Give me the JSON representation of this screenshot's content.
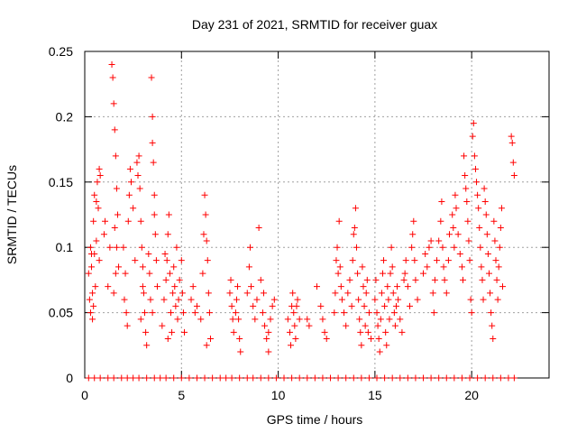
{
  "chart_data": {
    "type": "scatter",
    "title": "Day 231 of 2021, SRMTID for receiver guax",
    "xlabel": "GPS time / hours",
    "ylabel": "SRMTID / TECUs",
    "xlim": [
      0,
      24
    ],
    "ylim": [
      0,
      0.25
    ],
    "xticks": [
      0,
      5,
      10,
      15,
      20
    ],
    "yticks": [
      0,
      0.05,
      0.1,
      0.15,
      0.2,
      0.25
    ],
    "ytick_labels": [
      "0",
      "0.05",
      "0.1",
      "0.15",
      "0.2",
      "0.25"
    ],
    "grid": true,
    "marker": "+",
    "series_color": "#ff0000",
    "series": [
      {
        "name": "SRMTID",
        "points": [
          [
            0.2,
            0.08
          ],
          [
            0.25,
            0.06
          ],
          [
            0.3,
            0.05
          ],
          [
            0.3,
            0.1
          ],
          [
            0.35,
            0.085
          ],
          [
            0.4,
            0.065
          ],
          [
            0.45,
            0.12
          ],
          [
            0.5,
            0.14
          ],
          [
            0.5,
            0.095
          ],
          [
            0.55,
            0.07
          ],
          [
            0.6,
            0.105
          ],
          [
            0.65,
            0.15
          ],
          [
            0.7,
            0.13
          ],
          [
            0.4,
            0.045
          ],
          [
            0.45,
            0.055
          ],
          [
            0.75,
            0.16
          ],
          [
            0.8,
            0.155
          ],
          [
            0.75,
            0.09
          ],
          [
            0.35,
            0.095
          ],
          [
            0.6,
            0.135
          ],
          [
            1.0,
            0.11
          ],
          [
            1.05,
            0.12
          ],
          [
            1.2,
            0.07
          ],
          [
            1.3,
            0.1
          ],
          [
            1.4,
            0.24
          ],
          [
            1.45,
            0.23
          ],
          [
            1.5,
            0.21
          ],
          [
            1.55,
            0.19
          ],
          [
            1.6,
            0.17
          ],
          [
            1.65,
            0.145
          ],
          [
            1.7,
            0.125
          ],
          [
            1.75,
            0.085
          ],
          [
            1.5,
            0.065
          ],
          [
            1.6,
            0.08
          ],
          [
            1.55,
            0.115
          ],
          [
            1.65,
            0.1
          ],
          [
            2.0,
            0.1
          ],
          [
            2.05,
            0.06
          ],
          [
            2.1,
            0.08
          ],
          [
            2.15,
            0.05
          ],
          [
            2.2,
            0.04
          ],
          [
            2.25,
            0.12
          ],
          [
            2.3,
            0.14
          ],
          [
            2.35,
            0.16
          ],
          [
            2.4,
            0.15
          ],
          [
            2.5,
            0.13
          ],
          [
            2.6,
            0.09
          ],
          [
            2.7,
            0.165
          ],
          [
            2.75,
            0.155
          ],
          [
            2.8,
            0.17
          ],
          [
            2.85,
            0.145
          ],
          [
            2.9,
            0.12
          ],
          [
            2.95,
            0.1
          ],
          [
            3.0,
            0.085
          ],
          [
            3.05,
            0.065
          ],
          [
            3.1,
            0.05
          ],
          [
            3.15,
            0.035
          ],
          [
            3.2,
            0.025
          ],
          [
            3.0,
            0.07
          ],
          [
            2.9,
            0.045
          ],
          [
            3.3,
            0.095
          ],
          [
            3.35,
            0.08
          ],
          [
            3.4,
            0.06
          ],
          [
            3.45,
            0.23
          ],
          [
            3.5,
            0.2
          ],
          [
            3.5,
            0.18
          ],
          [
            3.55,
            0.165
          ],
          [
            3.6,
            0.14
          ],
          [
            3.6,
            0.125
          ],
          [
            3.65,
            0.11
          ],
          [
            3.7,
            0.09
          ],
          [
            3.75,
            0.07
          ],
          [
            3.5,
            0.05
          ],
          [
            4.0,
            0.04
          ],
          [
            4.1,
            0.06
          ],
          [
            4.2,
            0.075
          ],
          [
            4.25,
            0.09
          ],
          [
            4.3,
            0.11
          ],
          [
            4.35,
            0.125
          ],
          [
            4.4,
            0.08
          ],
          [
            4.45,
            0.05
          ],
          [
            4.5,
            0.035
          ],
          [
            4.55,
            0.065
          ],
          [
            4.6,
            0.085
          ],
          [
            4.65,
            0.07
          ],
          [
            4.7,
            0.055
          ],
          [
            4.75,
            0.1
          ],
          [
            4.8,
            0.045
          ],
          [
            4.85,
            0.06
          ],
          [
            4.9,
            0.075
          ],
          [
            5.0,
            0.09
          ],
          [
            5.05,
            0.065
          ],
          [
            5.1,
            0.05
          ],
          [
            5.15,
            0.035
          ],
          [
            4.3,
            0.03
          ],
          [
            4.15,
            0.095
          ],
          [
            5.5,
            0.06
          ],
          [
            5.6,
            0.07
          ],
          [
            5.7,
            0.05
          ],
          [
            5.8,
            0.055
          ],
          [
            6.0,
            0.045
          ],
          [
            6.1,
            0.08
          ],
          [
            6.2,
            0.14
          ],
          [
            6.25,
            0.125
          ],
          [
            6.3,
            0.105
          ],
          [
            6.35,
            0.09
          ],
          [
            6.4,
            0.065
          ],
          [
            6.45,
            0.05
          ],
          [
            6.5,
            0.03
          ],
          [
            6.3,
            0.025
          ],
          [
            6.15,
            0.11
          ],
          [
            7.5,
            0.065
          ],
          [
            7.6,
            0.055
          ],
          [
            7.65,
            0.045
          ],
          [
            7.7,
            0.035
          ],
          [
            7.8,
            0.05
          ],
          [
            7.85,
            0.06
          ],
          [
            7.9,
            0.07
          ],
          [
            7.95,
            0.045
          ],
          [
            8.0,
            0.03
          ],
          [
            8.05,
            0.02
          ],
          [
            7.55,
            0.075
          ],
          [
            8.4,
            0.065
          ],
          [
            8.5,
            0.085
          ],
          [
            8.55,
            0.1
          ],
          [
            8.6,
            0.07
          ],
          [
            8.7,
            0.055
          ],
          [
            8.8,
            0.045
          ],
          [
            8.9,
            0.06
          ],
          [
            9.0,
            0.115
          ],
          [
            9.1,
            0.075
          ],
          [
            9.2,
            0.05
          ],
          [
            9.3,
            0.04
          ],
          [
            9.4,
            0.03
          ],
          [
            9.5,
            0.02
          ],
          [
            9.6,
            0.045
          ],
          [
            9.7,
            0.055
          ],
          [
            9.8,
            0.06
          ],
          [
            9.5,
            0.035
          ],
          [
            9.25,
            0.065
          ],
          [
            10.5,
            0.045
          ],
          [
            10.6,
            0.035
          ],
          [
            10.7,
            0.055
          ],
          [
            10.75,
            0.065
          ],
          [
            10.8,
            0.05
          ],
          [
            10.85,
            0.04
          ],
          [
            10.9,
            0.03
          ],
          [
            10.95,
            0.055
          ],
          [
            11.0,
            0.06
          ],
          [
            11.1,
            0.045
          ],
          [
            10.65,
            0.025
          ],
          [
            11.5,
            0.045
          ],
          [
            11.6,
            0.04
          ],
          [
            12.0,
            0.07
          ],
          [
            12.2,
            0.055
          ],
          [
            12.3,
            0.045
          ],
          [
            12.4,
            0.035
          ],
          [
            12.5,
            0.03
          ],
          [
            12.9,
            0.05
          ],
          [
            12.95,
            0.065
          ],
          [
            13.0,
            0.09
          ],
          [
            13.05,
            0.1
          ],
          [
            13.1,
            0.08
          ],
          [
            13.15,
            0.12
          ],
          [
            13.2,
            0.085
          ],
          [
            13.25,
            0.07
          ],
          [
            13.3,
            0.06
          ],
          [
            13.4,
            0.05
          ],
          [
            13.5,
            0.04
          ],
          [
            13.6,
            0.065
          ],
          [
            13.7,
            0.075
          ],
          [
            13.8,
            0.055
          ],
          [
            13.85,
            0.09
          ],
          [
            13.9,
            0.11
          ],
          [
            13.95,
            0.115
          ],
          [
            14.0,
            0.13
          ],
          [
            14.05,
            0.1
          ],
          [
            14.1,
            0.08
          ],
          [
            14.15,
            0.06
          ],
          [
            14.2,
            0.045
          ],
          [
            14.25,
            0.035
          ],
          [
            14.3,
            0.025
          ],
          [
            14.35,
            0.085
          ],
          [
            14.4,
            0.07
          ],
          [
            14.45,
            0.055
          ],
          [
            14.5,
            0.04
          ],
          [
            14.55,
            0.065
          ],
          [
            14.6,
            0.075
          ],
          [
            14.65,
            0.035
          ],
          [
            14.7,
            0.05
          ],
          [
            14.8,
            0.03
          ],
          [
            15.0,
            0.06
          ],
          [
            15.05,
            0.075
          ],
          [
            15.1,
            0.05
          ],
          [
            15.15,
            0.04
          ],
          [
            15.2,
            0.03
          ],
          [
            15.25,
            0.02
          ],
          [
            15.3,
            0.045
          ],
          [
            15.35,
            0.065
          ],
          [
            15.4,
            0.08
          ],
          [
            15.45,
            0.09
          ],
          [
            15.5,
            0.055
          ],
          [
            15.55,
            0.035
          ],
          [
            15.6,
            0.025
          ],
          [
            15.65,
            0.07
          ],
          [
            15.7,
            0.06
          ],
          [
            15.75,
            0.045
          ],
          [
            15.8,
            0.08
          ],
          [
            15.85,
            0.1
          ],
          [
            15.9,
            0.085
          ],
          [
            15.95,
            0.065
          ],
          [
            16.0,
            0.05
          ],
          [
            16.05,
            0.04
          ],
          [
            16.1,
            0.055
          ],
          [
            16.15,
            0.07
          ],
          [
            16.2,
            0.06
          ],
          [
            16.3,
            0.045
          ],
          [
            16.4,
            0.035
          ],
          [
            16.5,
            0.075
          ],
          [
            16.55,
            0.08
          ],
          [
            16.6,
            0.09
          ],
          [
            16.7,
            0.07
          ],
          [
            16.8,
            0.055
          ],
          [
            16.9,
            0.1
          ],
          [
            16.95,
            0.11
          ],
          [
            17.0,
            0.12
          ],
          [
            17.05,
            0.09
          ],
          [
            17.1,
            0.075
          ],
          [
            17.2,
            0.06
          ],
          [
            17.5,
            0.08
          ],
          [
            17.6,
            0.095
          ],
          [
            17.7,
            0.085
          ],
          [
            17.8,
            0.1
          ],
          [
            17.9,
            0.105
          ],
          [
            18.0,
            0.065
          ],
          [
            18.05,
            0.05
          ],
          [
            18.1,
            0.075
          ],
          [
            18.2,
            0.09
          ],
          [
            18.3,
            0.105
          ],
          [
            18.4,
            0.12
          ],
          [
            18.45,
            0.135
          ],
          [
            18.5,
            0.1
          ],
          [
            18.55,
            0.085
          ],
          [
            18.6,
            0.075
          ],
          [
            18.7,
            0.065
          ],
          [
            18.8,
            0.09
          ],
          [
            18.85,
            0.11
          ],
          [
            19.0,
            0.125
          ],
          [
            19.05,
            0.115
          ],
          [
            19.1,
            0.1
          ],
          [
            19.15,
            0.14
          ],
          [
            19.2,
            0.13
          ],
          [
            19.3,
            0.11
          ],
          [
            19.4,
            0.095
          ],
          [
            19.5,
            0.085
          ],
          [
            19.55,
            0.075
          ],
          [
            19.6,
            0.17
          ],
          [
            19.65,
            0.155
          ],
          [
            19.7,
            0.145
          ],
          [
            19.75,
            0.135
          ],
          [
            19.8,
            0.12
          ],
          [
            19.85,
            0.105
          ],
          [
            19.9,
            0.09
          ],
          [
            19.95,
            0.06
          ],
          [
            20.0,
            0.05
          ],
          [
            20.05,
            0.185
          ],
          [
            20.1,
            0.195
          ],
          [
            20.15,
            0.17
          ],
          [
            20.2,
            0.16
          ],
          [
            20.25,
            0.15
          ],
          [
            20.3,
            0.14
          ],
          [
            20.35,
            0.13
          ],
          [
            20.4,
            0.115
          ],
          [
            20.45,
            0.1
          ],
          [
            20.5,
            0.085
          ],
          [
            20.55,
            0.075
          ],
          [
            20.6,
            0.06
          ],
          [
            20.65,
            0.145
          ],
          [
            20.7,
            0.135
          ],
          [
            20.75,
            0.125
          ],
          [
            20.8,
            0.11
          ],
          [
            20.85,
            0.095
          ],
          [
            20.9,
            0.08
          ],
          [
            20.95,
            0.065
          ],
          [
            21.0,
            0.05
          ],
          [
            21.05,
            0.04
          ],
          [
            21.1,
            0.03
          ],
          [
            21.15,
            0.12
          ],
          [
            21.2,
            0.105
          ],
          [
            21.25,
            0.09
          ],
          [
            21.3,
            0.075
          ],
          [
            21.35,
            0.06
          ],
          [
            21.4,
            0.085
          ],
          [
            21.45,
            0.1
          ],
          [
            21.5,
            0.115
          ],
          [
            21.55,
            0.13
          ],
          [
            21.6,
            0.07
          ],
          [
            22.1,
            0.18
          ],
          [
            22.15,
            0.165
          ],
          [
            22.2,
            0.155
          ],
          [
            22.05,
            0.185
          ]
        ]
      }
    ],
    "zero_points_x": [
      0.2,
      0.5,
      0.8,
      1.2,
      1.5,
      1.9,
      2.2,
      2.5,
      2.8,
      3.2,
      3.6,
      3.9,
      4.2,
      4.6,
      5.0,
      5.4,
      5.8,
      6.2,
      6.6,
      7.0,
      7.3,
      7.6,
      8.0,
      8.4,
      8.7,
      9.1,
      9.5,
      9.9,
      10.3,
      10.7,
      11.1,
      11.5,
      11.9,
      12.3,
      12.7,
      13.1,
      13.5,
      13.9,
      14.3,
      14.7,
      15.1,
      15.5,
      15.9,
      16.3,
      16.7,
      17.1,
      17.5,
      17.9,
      18.3,
      18.7,
      19.1,
      19.5,
      19.9,
      20.3,
      20.7,
      21.1,
      21.5,
      21.9,
      22.2
    ]
  }
}
